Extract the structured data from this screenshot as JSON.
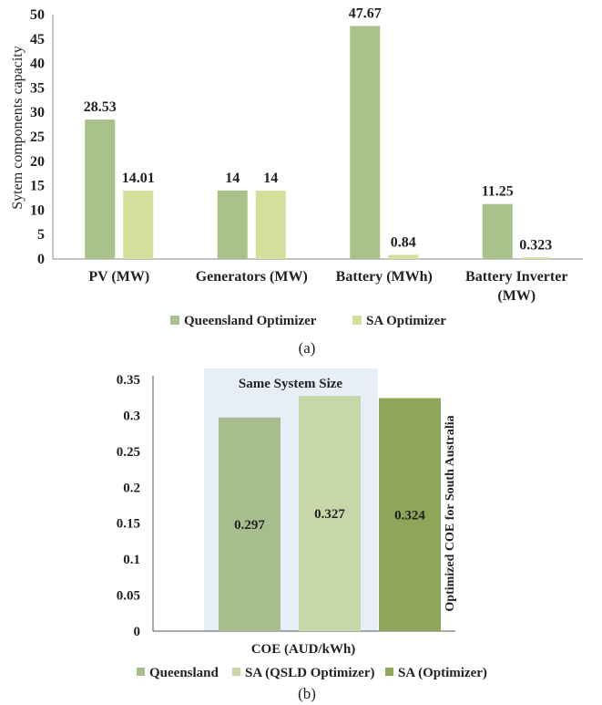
{
  "colors": {
    "queensland": "#a9c18a",
    "sa_optimizer": "#d3df9b",
    "coe_queensland": "#a8bd8e",
    "coe_sa_qsld": "#c8d7a8",
    "coe_sa_optimizer": "#8ea65a",
    "highlight_box": "#e7eef7",
    "axis": "#888888",
    "text": "#222222"
  },
  "chart_data": [
    {
      "type": "bar",
      "panel_label": "(a)",
      "title": "",
      "xlabel": "",
      "ylabel": "Sytem components capacity",
      "ylim": [
        0,
        50
      ],
      "yticks": [
        "0",
        "5",
        "10",
        "15",
        "20",
        "25",
        "30",
        "35",
        "40",
        "45",
        "50"
      ],
      "grid": false,
      "legend_position": "bottom",
      "categories": [
        {
          "line1": "PV (MW)",
          "line2": ""
        },
        {
          "line1": "Generators (MW)",
          "line2": ""
        },
        {
          "line1": "Battery (MWh)",
          "line2": ""
        },
        {
          "line1": "Battery Inverter",
          "line2": "(MW)"
        }
      ],
      "series": [
        {
          "name": "Queensland Optimizer",
          "values": [
            28.53,
            14,
            47.67,
            11.25
          ],
          "labels": [
            "28.53",
            "14",
            "47.67",
            "11.25"
          ]
        },
        {
          "name": "SA Optimizer",
          "values": [
            14.01,
            14,
            0.84,
            0.323
          ],
          "labels": [
            "14.01",
            "14",
            "0.84",
            "0.323"
          ]
        }
      ]
    },
    {
      "type": "bar",
      "panel_label": "(b)",
      "title": "",
      "xlabel": "COE (AUD/kWh)",
      "ylabel": "",
      "ylim": [
        0,
        0.35
      ],
      "yticks": [
        "0",
        "0.05",
        "0.1",
        "0.15",
        "0.2",
        "0.25",
        "0.3",
        "0.35"
      ],
      "grid": false,
      "legend_position": "bottom",
      "highlight_label": "Same System Size",
      "side_annotation": "Optimized COE for South Australia",
      "series": [
        {
          "name": "Queensland",
          "value": 0.297,
          "label": "0.297"
        },
        {
          "name": "SA (QSLD Optimizer)",
          "value": 0.327,
          "label": "0.327"
        },
        {
          "name": "SA (Optimizer)",
          "value": 0.324,
          "label": "0.324"
        }
      ]
    }
  ]
}
